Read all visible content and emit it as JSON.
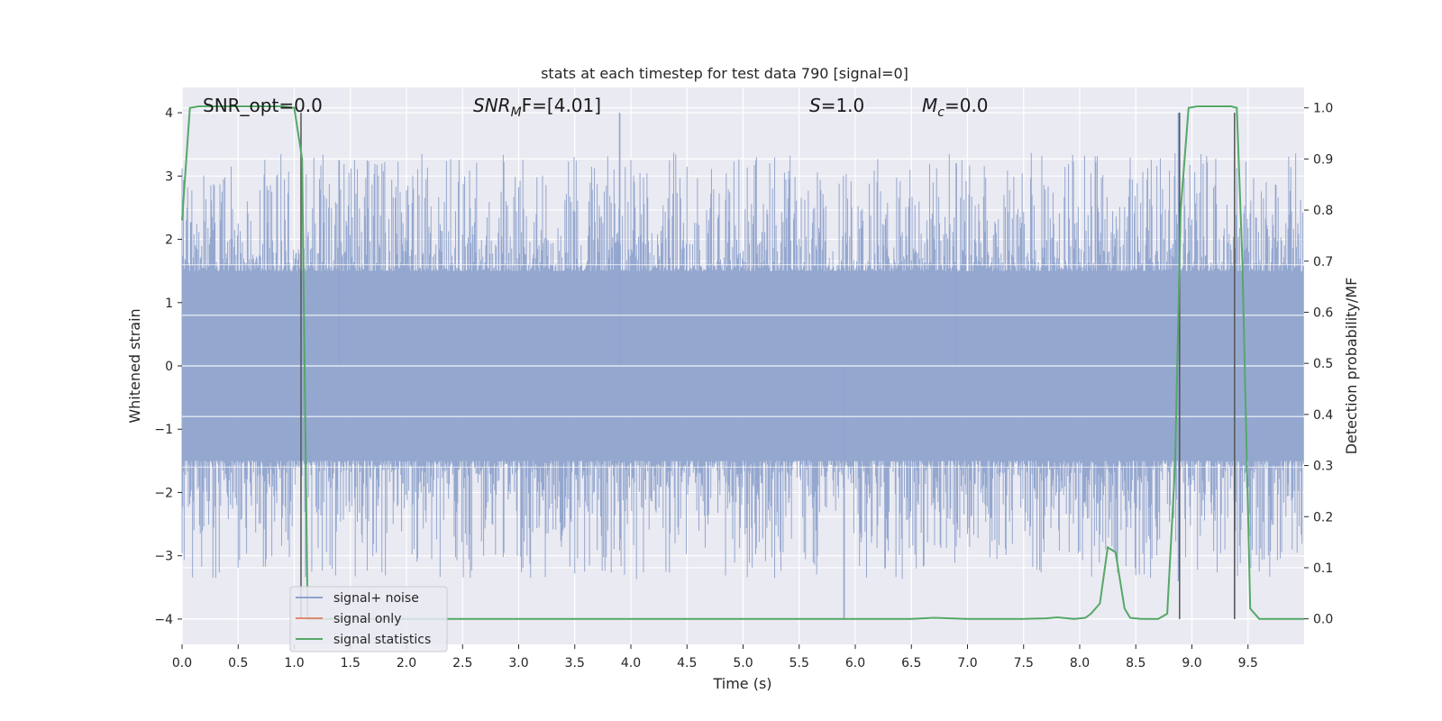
{
  "chart_data": {
    "type": "line",
    "title": "stats at each timestep for test data 790 [signal=0]",
    "xlabel": "Time (s)",
    "ylabel_left": "Whitened strain",
    "ylabel_right": "Detection probability/MF",
    "xlim": [
      0.0,
      10.0
    ],
    "ylim_left": [
      -4.4,
      4.4
    ],
    "ylim_right": [
      -0.05,
      1.04
    ],
    "xticks": [
      "0.0",
      "0.5",
      "1.0",
      "1.5",
      "2.0",
      "2.5",
      "3.0",
      "3.5",
      "4.0",
      "4.5",
      "5.0",
      "5.5",
      "6.0",
      "6.5",
      "7.0",
      "7.5",
      "8.0",
      "8.5",
      "9.0",
      "9.5"
    ],
    "yticks_left": [
      "−4",
      "−3",
      "−2",
      "−1",
      "0",
      "1",
      "2",
      "3",
      "4"
    ],
    "yticks_right": [
      "0.0",
      "0.1",
      "0.2",
      "0.3",
      "0.4",
      "0.5",
      "0.6",
      "0.7",
      "0.8",
      "0.9",
      "1.0"
    ],
    "grid": true,
    "legend": {
      "position": "lower-left",
      "entries": [
        {
          "label": "signal+ noise",
          "color": "#8fa3cc"
        },
        {
          "label": "signal only",
          "color": "#e08a6e"
        },
        {
          "label": "signal statistics",
          "color": "#55a868"
        }
      ]
    },
    "annotations": {
      "snr_opt": "SNR_opt=0.0",
      "snr_mf": "SNR",
      "snr_mf_sub": "M",
      "snr_mf_tail": "F=[4.01]",
      "s": "S",
      "s_val": "=1.0",
      "mc": "M",
      "mc_sub": "c",
      "mc_val": "=0.0"
    },
    "series": [
      {
        "name": "signal+ noise",
        "axis": "left",
        "color": "#8fa3cc",
        "envelope": {
          "typical_low": -1.5,
          "typical_high": 1.5,
          "peak_low": -4.0,
          "peak_high": 4.0
        },
        "spikes": [
          [
            1.4,
            3.25
          ],
          [
            3.9,
            4.0
          ],
          [
            5.9,
            -4.0
          ],
          [
            6.9,
            3.2
          ],
          [
            8.88,
            -3.4
          ],
          [
            8.88,
            4.0
          ],
          [
            9.38,
            -4.0
          ]
        ]
      },
      {
        "name": "signal only",
        "axis": "left",
        "color": "#e08a6e",
        "x": [
          0.0,
          10.0
        ],
        "y": [
          0.0,
          0.0
        ]
      },
      {
        "name": "signal statistics",
        "axis": "right",
        "color": "#55a868",
        "x": [
          0.0,
          0.07,
          0.15,
          0.3,
          0.5,
          0.7,
          0.9,
          1.0,
          1.07,
          1.12,
          1.2,
          2.0,
          3.0,
          4.0,
          5.0,
          6.0,
          6.5,
          6.7,
          7.0,
          7.5,
          7.7,
          7.8,
          7.95,
          8.05,
          8.1,
          8.18,
          8.25,
          8.32,
          8.4,
          8.45,
          8.55,
          8.7,
          8.78,
          8.85,
          8.9,
          8.97,
          9.05,
          9.2,
          9.35,
          9.4,
          9.45,
          9.52,
          9.6,
          9.7,
          9.8,
          9.9,
          10.0
        ],
        "y": [
          0.78,
          1.0,
          1.003,
          1.003,
          1.003,
          1.003,
          1.003,
          1.0,
          0.9,
          0.0,
          0.0,
          0.0,
          0.0,
          0.0,
          0.0,
          0.0,
          0.0,
          0.002,
          0.0,
          0.0,
          0.001,
          0.003,
          0.0,
          0.002,
          0.01,
          0.03,
          0.14,
          0.13,
          0.02,
          0.002,
          0.0,
          0.0,
          0.01,
          0.3,
          0.8,
          1.0,
          1.003,
          1.003,
          1.003,
          1.0,
          0.7,
          0.02,
          0.0,
          0.0,
          0.0,
          0.0,
          0.0
        ]
      }
    ],
    "vertical_lines": [
      1.06,
      8.89,
      9.38
    ]
  }
}
